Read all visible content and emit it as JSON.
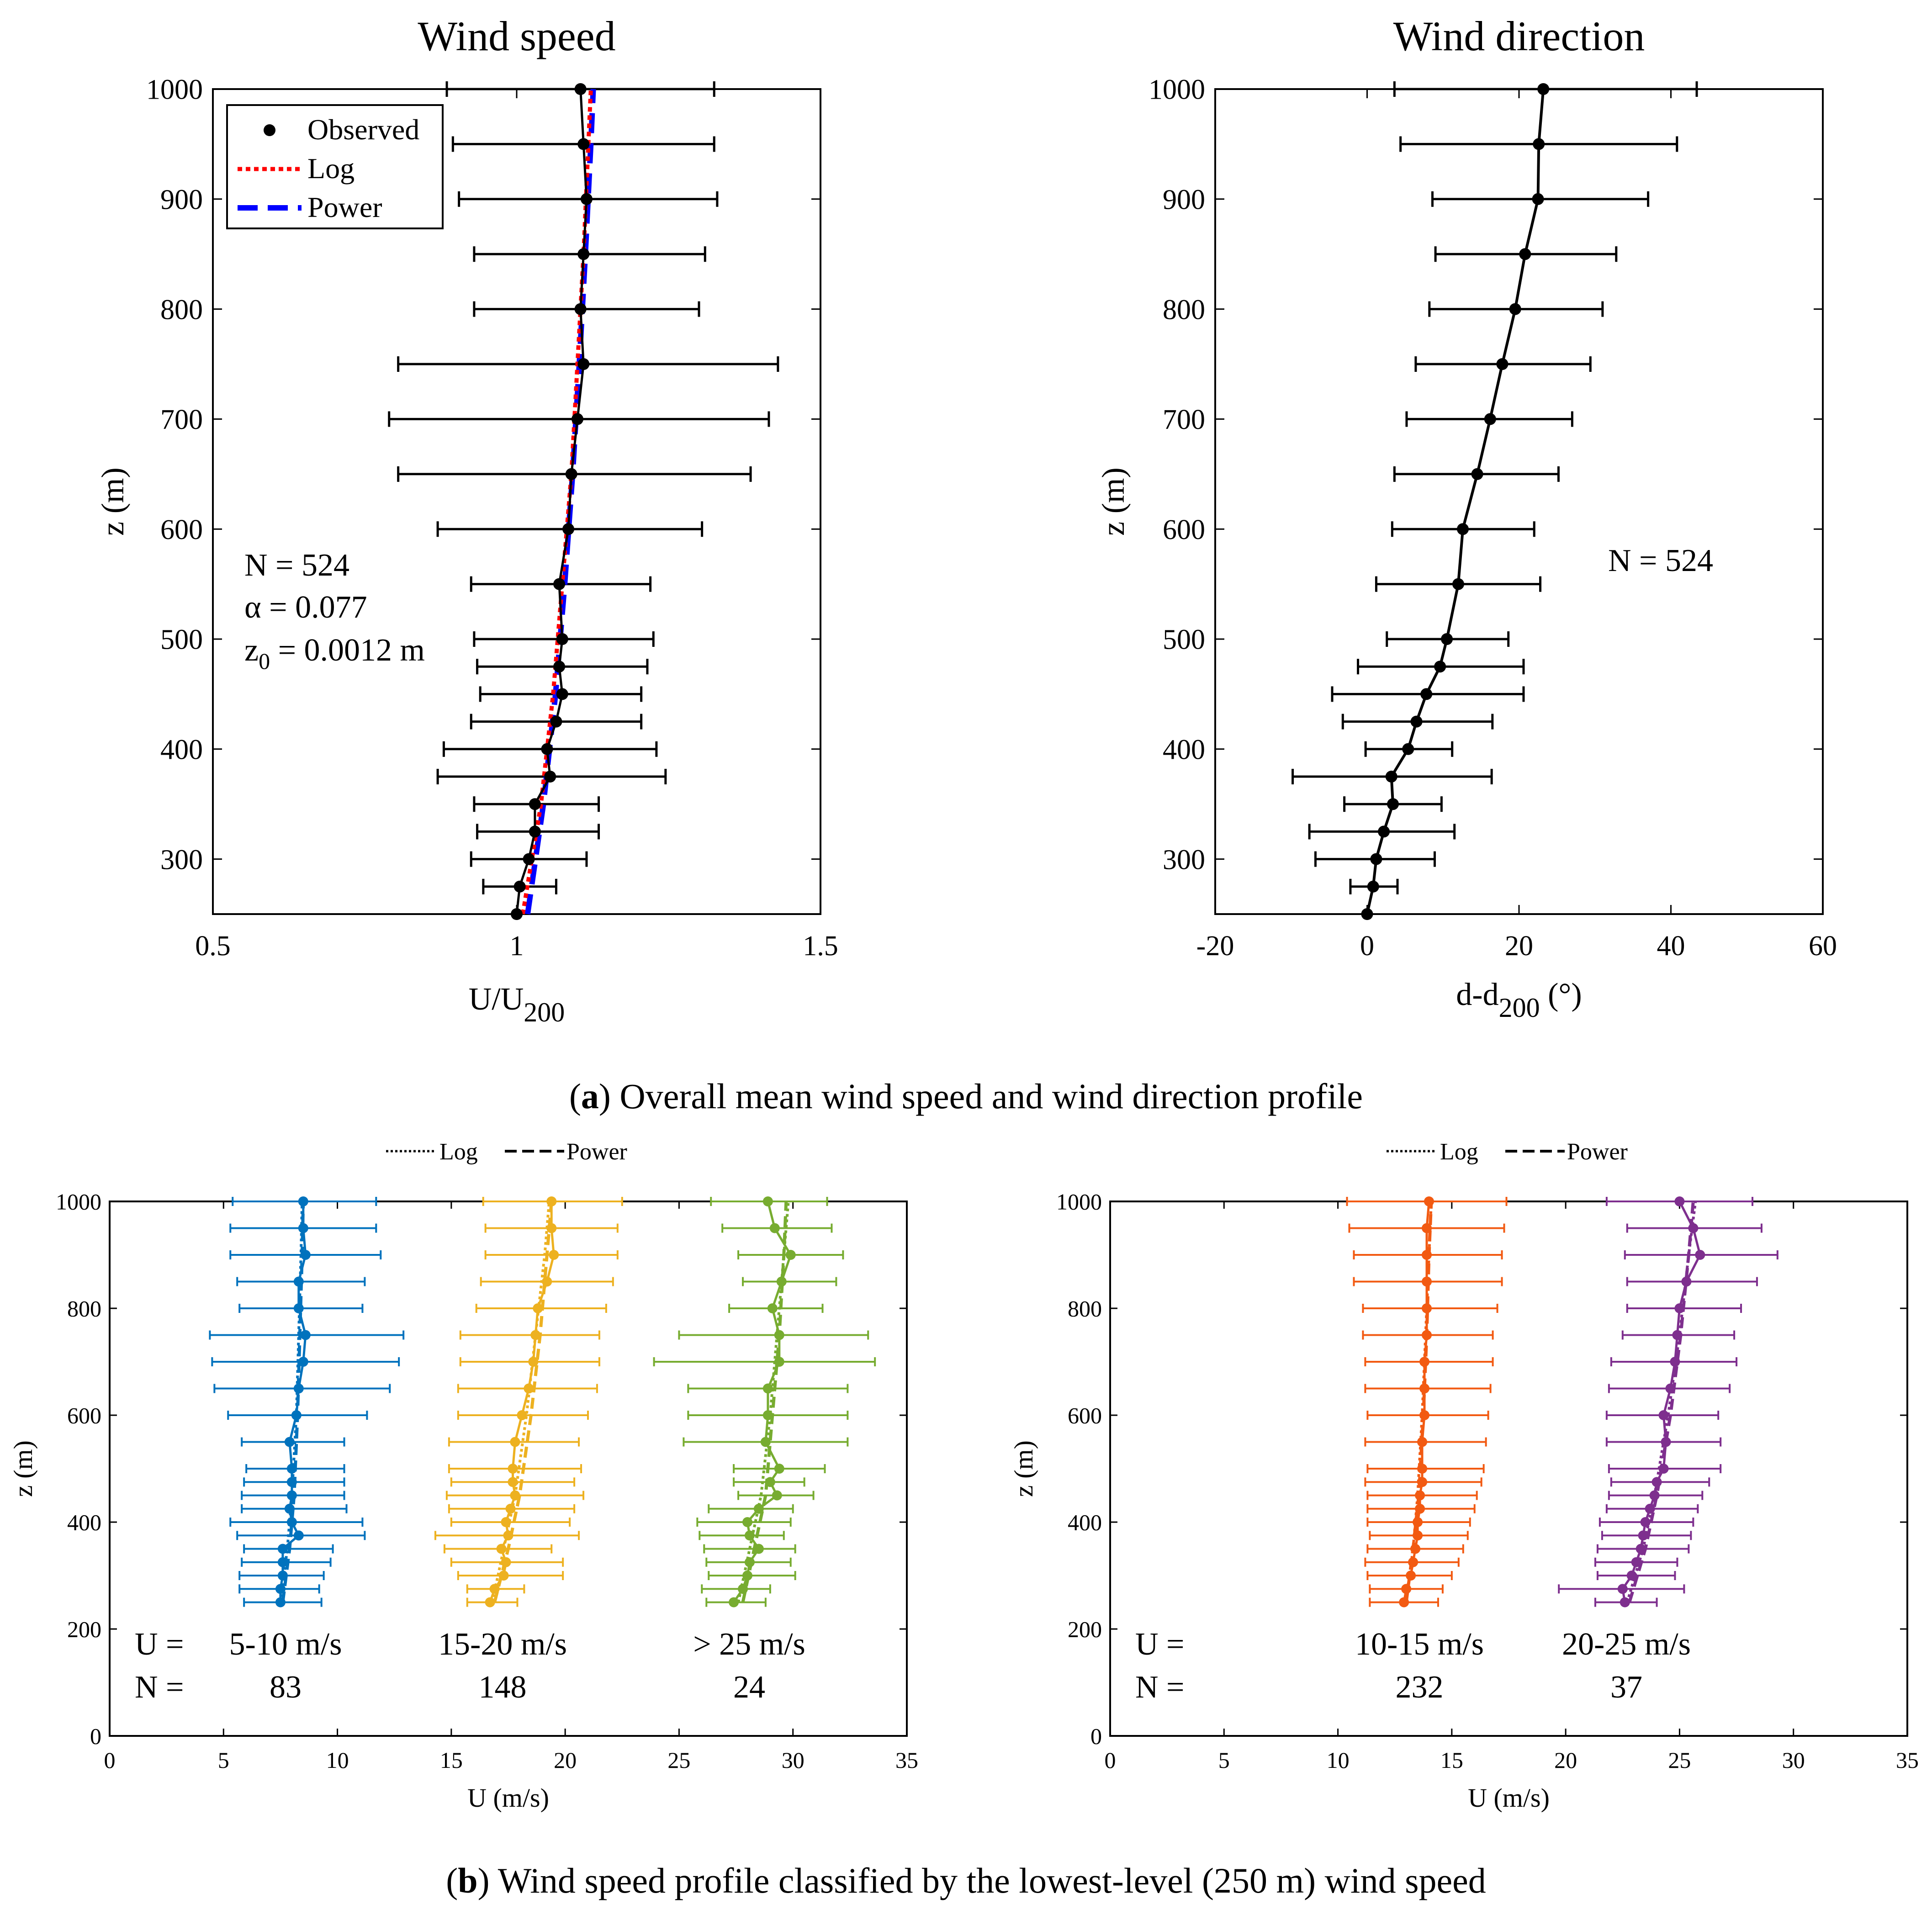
{
  "captions": {
    "a_letter": "a",
    "a_text": "Overall mean wind speed and wind direction profile",
    "b_letter": "b",
    "b_text": "Wind speed profile classified by the lowest-level (250 m) wind speed"
  },
  "colors": {
    "black": "#000000",
    "log": "#ff0000",
    "power": "#0000ff",
    "blue": "#0072bd",
    "yellow": "#edb120",
    "green": "#77ac30",
    "orange": "#f25a12",
    "purple": "#7e2f8e"
  },
  "chart_data": [
    {
      "id": "speed",
      "type": "line",
      "title": "Wind speed",
      "xlabel_main": "U/U",
      "xlabel_sub": "200",
      "ylabel": "z (m)",
      "xlim": [
        0.5,
        1.5
      ],
      "ylim": [
        250,
        1000
      ],
      "xticks": [
        0.5,
        1,
        1.5
      ],
      "xtick_labels": [
        "0.5",
        "1",
        "1.5"
      ],
      "yticks": [
        300,
        400,
        500,
        600,
        700,
        800,
        900,
        1000
      ],
      "ytick_labels": [
        "300",
        "400",
        "500",
        "600",
        "700",
        "800",
        "900",
        "1000"
      ],
      "legend": {
        "position": "top-left",
        "entries": [
          "Observed",
          "Log",
          "Power"
        ]
      },
      "annotations": [
        "N = 524",
        "α = 0.077",
        "z",
        "0",
        " = 0.0012 m"
      ],
      "observed": {
        "z": [
          250,
          275,
          300,
          325,
          350,
          375,
          400,
          425,
          450,
          475,
          500,
          550,
          600,
          650,
          700,
          750,
          800,
          850,
          900,
          950,
          1000
        ],
        "mean": [
          1.0,
          1.005,
          1.02,
          1.03,
          1.03,
          1.055,
          1.05,
          1.065,
          1.075,
          1.07,
          1.075,
          1.07,
          1.085,
          1.09,
          1.1,
          1.11,
          1.105,
          1.11,
          1.115,
          1.11,
          1.105
        ],
        "lo": [
          1.0,
          0.945,
          0.925,
          0.935,
          0.93,
          0.87,
          0.88,
          0.925,
          0.94,
          0.935,
          0.93,
          0.925,
          0.87,
          0.805,
          0.79,
          0.805,
          0.93,
          0.93,
          0.905,
          0.895,
          0.885
        ],
        "hi": [
          1.0,
          1.065,
          1.115,
          1.135,
          1.135,
          1.245,
          1.23,
          1.205,
          1.205,
          1.215,
          1.225,
          1.22,
          1.305,
          1.385,
          1.415,
          1.43,
          1.3,
          1.31,
          1.33,
          1.325,
          1.325
        ]
      },
      "log_fit": {
        "z": [
          250,
          350,
          450,
          550,
          650,
          750,
          850,
          950,
          1000
        ],
        "u": [
          1.01,
          1.04,
          1.06,
          1.075,
          1.09,
          1.1,
          1.11,
          1.118,
          1.122
        ]
      },
      "power_fit": {
        "z": [
          250,
          350,
          450,
          550,
          650,
          750,
          850,
          950,
          1000
        ],
        "u": [
          1.018,
          1.044,
          1.064,
          1.079,
          1.092,
          1.103,
          1.113,
          1.122,
          1.126
        ]
      }
    },
    {
      "id": "direction",
      "type": "line",
      "title": "Wind direction",
      "xlabel_main": "d-d",
      "xlabel_sub": "200",
      "xlabel_tail": " (°)",
      "ylabel": "z (m)",
      "xlim": [
        -20,
        60
      ],
      "ylim": [
        250,
        1000
      ],
      "xticks": [
        -20,
        0,
        20,
        40,
        60
      ],
      "xtick_labels": [
        "-20",
        "0",
        "20",
        "40",
        "60"
      ],
      "yticks": [
        300,
        400,
        500,
        600,
        700,
        800,
        900,
        1000
      ],
      "ytick_labels": [
        "300",
        "400",
        "500",
        "600",
        "700",
        "800",
        "900",
        "1000"
      ],
      "annotation": "N = 524",
      "observed": {
        "z": [
          250,
          275,
          300,
          325,
          350,
          375,
          400,
          425,
          450,
          475,
          500,
          550,
          600,
          650,
          700,
          750,
          800,
          850,
          900,
          950,
          1000
        ],
        "mean": [
          0,
          0.8,
          1.2,
          2.2,
          3.4,
          3.2,
          5.4,
          6.5,
          7.8,
          9.6,
          10.5,
          12,
          12.6,
          14.5,
          16.2,
          17.8,
          19.5,
          20.8,
          22.5,
          22.6,
          23.2
        ],
        "lo": [
          0,
          -2.2,
          -6.8,
          -7.6,
          -3,
          -9.8,
          -0.2,
          -3.2,
          -4.6,
          -1.2,
          2.6,
          1.2,
          3.3,
          3.6,
          5.2,
          6.4,
          8.2,
          9,
          8.6,
          4.4,
          3.6
        ],
        "hi": [
          0,
          4,
          8.9,
          11.5,
          9.8,
          16.4,
          11.2,
          16.5,
          20.6,
          20.6,
          18.6,
          22.8,
          22,
          25.2,
          27,
          29.4,
          31,
          32.8,
          37,
          40.8,
          43.4
        ]
      }
    },
    {
      "id": "classes_left",
      "type": "line",
      "legend": {
        "position": "top",
        "entries": [
          "Log",
          "Power"
        ]
      },
      "xlabel": "U (m/s)",
      "ylabel": "z (m)",
      "xlim": [
        0,
        35
      ],
      "ylim": [
        0,
        1000
      ],
      "xticks": [
        0,
        5,
        10,
        15,
        20,
        25,
        30,
        35
      ],
      "xtick_labels": [
        "0",
        "5",
        "10",
        "15",
        "20",
        "25",
        "30",
        "35"
      ],
      "yticks": [
        0,
        200,
        400,
        600,
        800,
        1000
      ],
      "ytick_labels": [
        "0",
        "200",
        "400",
        "600",
        "800",
        "1000"
      ],
      "row_labels": {
        "u": "U =",
        "n": "N ="
      },
      "classes": [
        {
          "name": "5-10 m/s",
          "n": "83",
          "color": "#0072bd",
          "z": [
            250,
            275,
            300,
            325,
            350,
            375,
            400,
            425,
            450,
            475,
            500,
            550,
            600,
            650,
            700,
            750,
            800,
            850,
            900,
            950,
            1000
          ],
          "mean": [
            7.5,
            7.5,
            7.6,
            7.6,
            7.6,
            8.3,
            8.0,
            7.9,
            8.0,
            8.0,
            8.0,
            7.9,
            8.2,
            8.3,
            8.5,
            8.6,
            8.3,
            8.3,
            8.6,
            8.5,
            8.5
          ],
          "lo": [
            5.9,
            5.7,
            5.7,
            5.8,
            5.9,
            5.6,
            5.3,
            5.8,
            5.8,
            5.9,
            6.0,
            5.8,
            5.2,
            4.6,
            4.5,
            4.4,
            5.7,
            5.6,
            5.3,
            5.3,
            5.4
          ],
          "hi": [
            9.3,
            9.2,
            9.4,
            9.7,
            9.8,
            11.2,
            11.1,
            10.4,
            10.3,
            10.3,
            10.3,
            10.3,
            11.3,
            12.3,
            12.7,
            12.9,
            11.1,
            11.2,
            11.9,
            11.7,
            11.7
          ],
          "log": [
            7.5,
            7.8,
            8.0,
            8.2,
            8.3,
            8.4,
            8.45
          ],
          "power": [
            7.6,
            7.9,
            8.1,
            8.25,
            8.35,
            8.45,
            8.5
          ]
        },
        {
          "name": "15-20 m/s",
          "n": "148",
          "color": "#edb120",
          "z": [
            250,
            275,
            300,
            325,
            350,
            375,
            400,
            425,
            450,
            475,
            500,
            550,
            600,
            650,
            700,
            750,
            800,
            850,
            900,
            950,
            1000
          ],
          "mean": [
            16.7,
            16.9,
            17.3,
            17.4,
            17.2,
            17.5,
            17.4,
            17.6,
            17.8,
            17.7,
            17.7,
            17.8,
            18.1,
            18.4,
            18.6,
            18.7,
            18.8,
            19.2,
            19.5,
            19.4,
            19.4
          ],
          "lo": [
            15.7,
            15.7,
            15.3,
            15.0,
            14.7,
            14.3,
            15.0,
            14.9,
            14.8,
            15.0,
            14.9,
            14.9,
            15.3,
            15.3,
            15.4,
            15.4,
            16.1,
            16.3,
            16.5,
            16.5,
            16.4
          ],
          "hi": [
            17.9,
            18.2,
            19.9,
            19.9,
            19.4,
            20.6,
            20.2,
            20.4,
            20.8,
            20.4,
            20.7,
            20.6,
            21.0,
            21.4,
            21.5,
            21.5,
            21.8,
            22.1,
            22.3,
            22.3,
            22.5
          ],
          "log": [
            16.8,
            17.3,
            17.8,
            18.3,
            18.7,
            19.1,
            19.3
          ],
          "power": [
            16.9,
            17.5,
            18.0,
            18.5,
            18.9,
            19.2,
            19.4
          ]
        },
        {
          "name": "> 25 m/s",
          "n": "24",
          "color": "#77ac30",
          "z": [
            250,
            275,
            300,
            325,
            350,
            375,
            400,
            425,
            450,
            475,
            500,
            550,
            600,
            650,
            700,
            750,
            800,
            850,
            900,
            950,
            1000
          ],
          "mean": [
            27.4,
            27.8,
            28.0,
            28.1,
            28.5,
            28.1,
            28.0,
            28.5,
            29.3,
            29.0,
            29.4,
            28.8,
            28.9,
            28.9,
            29.4,
            29.4,
            29.1,
            29.5,
            29.9,
            29.2,
            28.9
          ],
          "lo": [
            26.2,
            26.0,
            26.3,
            26.2,
            26.1,
            25.9,
            25.8,
            26.3,
            27.6,
            27.4,
            27.4,
            25.2,
            25.4,
            25.4,
            23.9,
            25.0,
            27.2,
            27.8,
            27.6,
            26.9,
            26.4
          ],
          "hi": [
            28.8,
            29.0,
            30.1,
            29.9,
            30.1,
            29.6,
            29.9,
            30.0,
            30.9,
            30.5,
            31.4,
            32.4,
            32.4,
            32.4,
            33.6,
            33.3,
            31.3,
            31.9,
            32.2,
            31.7,
            31.5
          ],
          "log": [
            27.6,
            28.1,
            28.6,
            29.0,
            29.3,
            29.6,
            29.8
          ],
          "power": [
            27.8,
            28.3,
            28.8,
            29.1,
            29.4,
            29.6,
            29.7
          ]
        }
      ],
      "fit_z": [
        250,
        350,
        450,
        600,
        750,
        900,
        1000
      ]
    },
    {
      "id": "classes_right",
      "type": "line",
      "legend": {
        "position": "top",
        "entries": [
          "Log",
          "Power"
        ]
      },
      "xlabel": "U (m/s)",
      "ylabel": "z (m)",
      "xlim": [
        0,
        35
      ],
      "ylim": [
        0,
        1000
      ],
      "xticks": [
        0,
        5,
        10,
        15,
        20,
        25,
        30,
        35
      ],
      "xtick_labels": [
        "0",
        "5",
        "10",
        "15",
        "20",
        "25",
        "30",
        "35"
      ],
      "yticks": [
        0,
        200,
        400,
        600,
        800,
        1000
      ],
      "ytick_labels": [
        "0",
        "200",
        "400",
        "600",
        "800",
        "1000"
      ],
      "row_labels": {
        "u": "U =",
        "n": "N ="
      },
      "classes": [
        {
          "name": "10-15 m/s",
          "n": "232",
          "color": "#f25a12",
          "z": [
            250,
            275,
            300,
            325,
            350,
            375,
            400,
            425,
            450,
            475,
            500,
            550,
            600,
            650,
            700,
            750,
            800,
            850,
            900,
            950,
            1000
          ],
          "mean": [
            12.9,
            13.0,
            13.2,
            13.3,
            13.4,
            13.5,
            13.5,
            13.6,
            13.6,
            13.7,
            13.7,
            13.7,
            13.8,
            13.8,
            13.8,
            13.9,
            13.9,
            13.9,
            13.9,
            13.9,
            14.0
          ],
          "lo": [
            11.4,
            11.4,
            11.3,
            11.2,
            11.3,
            11.4,
            11.3,
            11.3,
            11.3,
            11.2,
            11.3,
            11.2,
            11.3,
            11.2,
            11.2,
            11.1,
            11.1,
            10.7,
            10.7,
            10.5,
            10.4
          ],
          "hi": [
            14.4,
            14.6,
            15.0,
            15.3,
            15.5,
            15.7,
            15.8,
            16.0,
            16.1,
            16.3,
            16.4,
            16.5,
            16.6,
            16.7,
            16.8,
            16.8,
            17.0,
            17.2,
            17.2,
            17.3,
            17.4
          ],
          "log": [
            13.0,
            13.3,
            13.5,
            13.7,
            13.85,
            14.0,
            14.1
          ],
          "power": [
            13.0,
            13.3,
            13.55,
            13.75,
            13.9,
            14.0,
            14.1
          ]
        },
        {
          "name": "20-25 m/s",
          "n": "37",
          "color": "#7e2f8e",
          "z": [
            250,
            275,
            300,
            325,
            350,
            375,
            400,
            425,
            450,
            475,
            500,
            550,
            600,
            650,
            700,
            750,
            800,
            850,
            900,
            950,
            1000
          ],
          "mean": [
            22.6,
            22.5,
            22.9,
            23.1,
            23.3,
            23.4,
            23.5,
            23.7,
            23.9,
            24.0,
            24.3,
            24.4,
            24.3,
            24.6,
            24.8,
            24.9,
            25.0,
            25.3,
            25.9,
            25.6,
            25.0
          ],
          "lo": [
            21.3,
            19.7,
            21.4,
            21.3,
            21.4,
            21.6,
            21.5,
            21.8,
            21.9,
            22.0,
            21.9,
            21.8,
            21.8,
            21.9,
            22.0,
            22.5,
            22.7,
            22.7,
            22.6,
            22.7,
            21.8
          ],
          "hi": [
            24.0,
            25.2,
            24.8,
            24.9,
            25.4,
            25.5,
            25.6,
            25.8,
            26.0,
            26.3,
            26.8,
            26.8,
            26.7,
            27.2,
            27.5,
            27.4,
            27.7,
            28.4,
            29.3,
            28.6,
            28.2
          ],
          "log": [
            22.7,
            23.4,
            23.9,
            24.5,
            25.0,
            25.4,
            25.7
          ],
          "power": [
            22.8,
            23.5,
            24.0,
            24.6,
            25.05,
            25.4,
            25.6
          ]
        }
      ],
      "fit_z": [
        250,
        350,
        450,
        600,
        750,
        900,
        1000
      ]
    }
  ]
}
